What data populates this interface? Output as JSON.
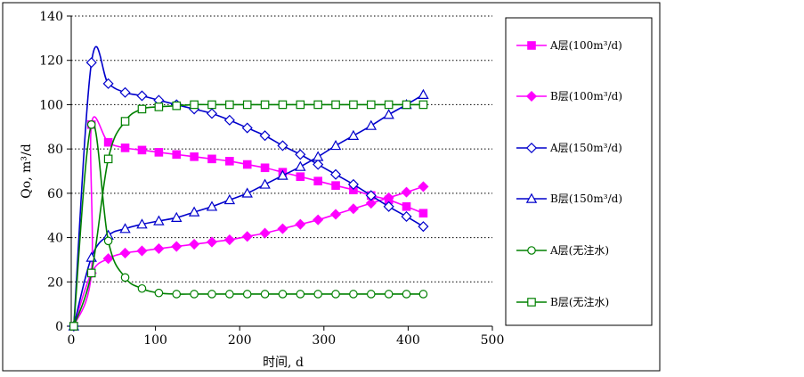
{
  "chart_data": {
    "type": "line",
    "xlabel": "时间, d",
    "ylabel": "Qo, m³/d",
    "xlim": [
      0,
      500
    ],
    "ylim": [
      0,
      140
    ],
    "x_ticks": [
      0,
      100,
      200,
      300,
      400,
      500
    ],
    "y_ticks": [
      0,
      20,
      40,
      60,
      80,
      100,
      120,
      140
    ],
    "grid": "horizontal dotted",
    "legend_position": "right",
    "series": [
      {
        "name": "A层(100m³/d)",
        "color": "#ff00ff",
        "marker": "square-filled",
        "points": [
          [
            3,
            0
          ],
          [
            24,
            24
          ],
          [
            24,
            91
          ],
          [
            44,
            83
          ],
          [
            64,
            80.5
          ],
          [
            84,
            79.5
          ],
          [
            104,
            78.5
          ],
          [
            125,
            77.5
          ],
          [
            146,
            76.5
          ],
          [
            167,
            75.5
          ],
          [
            188,
            74.5
          ],
          [
            209,
            73
          ],
          [
            230,
            71.5
          ],
          [
            251,
            69.5
          ],
          [
            272,
            67.5
          ],
          [
            293,
            65.5
          ],
          [
            314,
            63.5
          ],
          [
            335,
            61.5
          ],
          [
            356,
            59
          ],
          [
            377,
            57
          ],
          [
            398,
            54
          ],
          [
            418,
            51
          ]
        ]
      },
      {
        "name": "B层(100m³/d)",
        "color": "#ff00ff",
        "marker": "diamond-filled",
        "points": [
          [
            3,
            0
          ],
          [
            24,
            24
          ],
          [
            44,
            30.5
          ],
          [
            64,
            33
          ],
          [
            84,
            34
          ],
          [
            104,
            35
          ],
          [
            125,
            36
          ],
          [
            146,
            37
          ],
          [
            167,
            38
          ],
          [
            188,
            39
          ],
          [
            209,
            40.5
          ],
          [
            230,
            42
          ],
          [
            251,
            44
          ],
          [
            272,
            46
          ],
          [
            293,
            48
          ],
          [
            314,
            50.5
          ],
          [
            335,
            53
          ],
          [
            356,
            55.5
          ],
          [
            377,
            58
          ],
          [
            398,
            60.5
          ],
          [
            418,
            63
          ]
        ]
      },
      {
        "name": "A层(150m³/d)",
        "color": "#0000cc",
        "marker": "diamond-open",
        "points": [
          [
            3,
            0
          ],
          [
            24,
            119
          ],
          [
            44,
            109.5
          ],
          [
            64,
            105.5
          ],
          [
            84,
            104
          ],
          [
            104,
            102
          ],
          [
            125,
            100
          ],
          [
            146,
            98
          ],
          [
            167,
            96
          ],
          [
            188,
            93
          ],
          [
            209,
            89.5
          ],
          [
            230,
            86
          ],
          [
            251,
            81.5
          ],
          [
            272,
            77.5
          ],
          [
            293,
            73
          ],
          [
            314,
            68.5
          ],
          [
            335,
            64
          ],
          [
            356,
            59
          ],
          [
            377,
            54
          ],
          [
            398,
            49.5
          ],
          [
            418,
            45
          ]
        ]
      },
      {
        "name": "B层(150m³/d)",
        "color": "#0000cc",
        "marker": "triangle-open",
        "points": [
          [
            3,
            0
          ],
          [
            24,
            31
          ],
          [
            44,
            41
          ],
          [
            64,
            44
          ],
          [
            84,
            46
          ],
          [
            104,
            47.5
          ],
          [
            125,
            49
          ],
          [
            146,
            51.5
          ],
          [
            167,
            54
          ],
          [
            188,
            57
          ],
          [
            209,
            60
          ],
          [
            230,
            64
          ],
          [
            251,
            68
          ],
          [
            272,
            72
          ],
          [
            293,
            76.5
          ],
          [
            314,
            81.5
          ],
          [
            335,
            86
          ],
          [
            356,
            90.5
          ],
          [
            377,
            95.5
          ],
          [
            398,
            100
          ],
          [
            418,
            104.5
          ]
        ]
      },
      {
        "name": "A层(无注水)",
        "color": "#008000",
        "marker": "circle-open",
        "points": [
          [
            3,
            0
          ],
          [
            24,
            91
          ],
          [
            44,
            38.5
          ],
          [
            64,
            22
          ],
          [
            84,
            17
          ],
          [
            104,
            15
          ],
          [
            125,
            14.5
          ],
          [
            146,
            14.5
          ],
          [
            167,
            14.5
          ],
          [
            188,
            14.5
          ],
          [
            209,
            14.5
          ],
          [
            230,
            14.5
          ],
          [
            251,
            14.5
          ],
          [
            272,
            14.5
          ],
          [
            293,
            14.5
          ],
          [
            314,
            14.5
          ],
          [
            335,
            14.5
          ],
          [
            356,
            14.5
          ],
          [
            377,
            14.5
          ],
          [
            398,
            14.5
          ],
          [
            418,
            14.5
          ]
        ]
      },
      {
        "name": "B层(无注水)",
        "color": "#008000",
        "marker": "square-open",
        "points": [
          [
            3,
            0
          ],
          [
            24,
            24
          ],
          [
            44,
            75.5
          ],
          [
            64,
            92.5
          ],
          [
            84,
            98
          ],
          [
            104,
            99
          ],
          [
            125,
            99.5
          ],
          [
            146,
            100
          ],
          [
            167,
            100
          ],
          [
            188,
            100
          ],
          [
            209,
            100
          ],
          [
            230,
            100
          ],
          [
            251,
            100
          ],
          [
            272,
            100
          ],
          [
            293,
            100
          ],
          [
            314,
            100
          ],
          [
            335,
            100
          ],
          [
            356,
            100
          ],
          [
            377,
            100
          ],
          [
            398,
            100
          ],
          [
            418,
            100
          ]
        ]
      }
    ]
  }
}
